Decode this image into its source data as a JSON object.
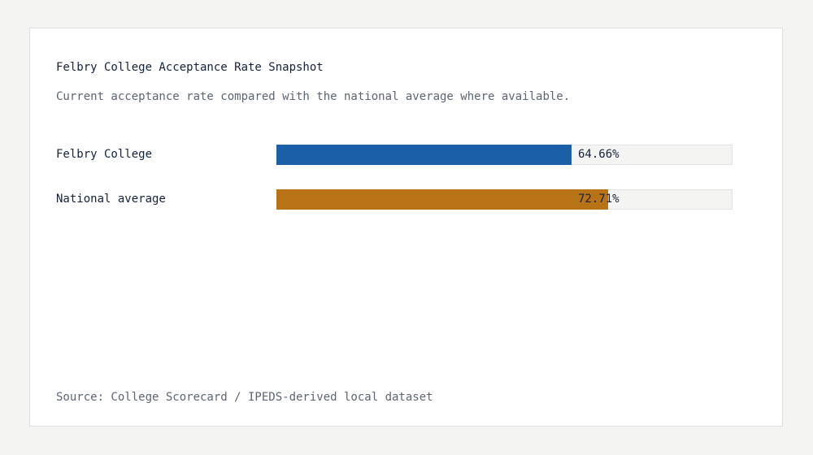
{
  "chart_data": {
    "type": "bar",
    "orientation": "horizontal",
    "title": "Felbry College Acceptance Rate Snapshot",
    "subtitle": "Current acceptance rate compared with the national average where available.",
    "categories": [
      "Felbry College",
      "National average"
    ],
    "values": [
      64.66,
      72.71
    ],
    "value_labels": [
      "64.66%",
      "72.71%"
    ],
    "colors": [
      "#1a5fa8",
      "#b87317"
    ],
    "xlim": [
      0,
      100
    ],
    "grid": false,
    "source": "Source: College Scorecard / IPEDS-derived local dataset"
  }
}
